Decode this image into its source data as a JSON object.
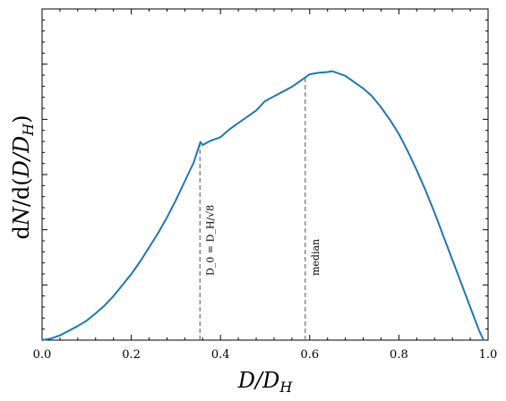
{
  "chart_data": {
    "type": "line",
    "title": "",
    "xlabel": "D/D_H",
    "ylabel": "dN/d(D/D_H)",
    "xlim": [
      0.0,
      1.0
    ],
    "ylim": [
      0.0,
      1.0
    ],
    "y_tick_labels_shown": false,
    "grid": false,
    "x_ticks": [
      "0.0",
      "0.2",
      "0.4",
      "0.6",
      "0.8",
      "1.0"
    ],
    "series": [
      {
        "color": "#1f77b4",
        "x": [
          0.0,
          0.02,
          0.04,
          0.06,
          0.08,
          0.1,
          0.12,
          0.14,
          0.16,
          0.18,
          0.2,
          0.22,
          0.24,
          0.26,
          0.28,
          0.3,
          0.32,
          0.34,
          0.355,
          0.36,
          0.37,
          0.38,
          0.4,
          0.42,
          0.44,
          0.46,
          0.48,
          0.5,
          0.52,
          0.54,
          0.56,
          0.58,
          0.6,
          0.62,
          0.64,
          0.65,
          0.66,
          0.68,
          0.7,
          0.72,
          0.74,
          0.76,
          0.78,
          0.8,
          0.82,
          0.84,
          0.86,
          0.88,
          0.9,
          0.92,
          0.94,
          0.96,
          0.98,
          0.99
        ],
        "y": [
          0.0,
          0.005,
          0.015,
          0.03,
          0.045,
          0.062,
          0.085,
          0.11,
          0.14,
          0.175,
          0.21,
          0.25,
          0.295,
          0.34,
          0.39,
          0.445,
          0.505,
          0.565,
          0.63,
          0.62,
          0.628,
          0.635,
          0.645,
          0.67,
          0.69,
          0.71,
          0.73,
          0.76,
          0.775,
          0.79,
          0.805,
          0.825,
          0.845,
          0.85,
          0.852,
          0.855,
          0.85,
          0.84,
          0.82,
          0.8,
          0.775,
          0.74,
          0.7,
          0.655,
          0.6,
          0.54,
          0.475,
          0.405,
          0.33,
          0.255,
          0.18,
          0.105,
          0.03,
          0.0
        ]
      }
    ],
    "annotations": [
      {
        "x": 0.354,
        "label": "D_0 = D_H/√8",
        "style": "dashed",
        "color": "#777777"
      },
      {
        "x": 0.59,
        "label": "median",
        "style": "dashed",
        "color": "#777777"
      }
    ]
  }
}
